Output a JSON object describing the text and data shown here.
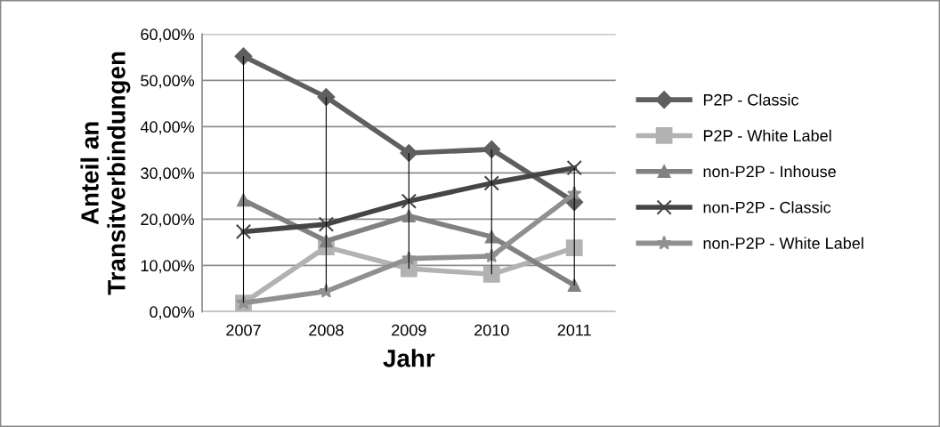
{
  "chart_data": {
    "type": "line",
    "xlabel": "Jahr",
    "ylabel": "Anteil an\nTransitverbindungen",
    "categories": [
      "2007",
      "2008",
      "2009",
      "2010",
      "2011"
    ],
    "series": [
      {
        "name": "P2P - Classic",
        "color": "#5f5f5f",
        "marker": "diamond",
        "values": [
          55.2,
          46.4,
          34.3,
          35.1,
          23.7
        ]
      },
      {
        "name": "P2P - White Label",
        "color": "#b2b2b2",
        "marker": "square",
        "values": [
          1.9,
          14.0,
          9.3,
          8.1,
          13.8
        ]
      },
      {
        "name": "non-P2P - Inhouse",
        "color": "#818181",
        "marker": "triangle",
        "values": [
          24.1,
          15.3,
          20.7,
          16.2,
          5.7
        ]
      },
      {
        "name": "non-P2P - Classic",
        "color": "#454545",
        "marker": "cross",
        "values": [
          17.3,
          18.9,
          23.9,
          27.8,
          31.1
        ]
      },
      {
        "name": "non-P2P - White Label",
        "color": "#909090",
        "marker": "star",
        "values": [
          1.9,
          4.4,
          11.5,
          12.0,
          25.5
        ]
      },
      {
        "type": "bar",
        "color": "#000000",
        "base": [
          1.9,
          4.4,
          9.3,
          8.1,
          5.7
        ],
        "values": [
          53.3,
          42.0,
          25.0,
          27.0,
          25.4
        ]
      }
    ],
    "ylim": [
      0,
      60
    ],
    "yticks": [
      {
        "value": 0,
        "label": "0,00%"
      },
      {
        "value": 10,
        "label": "10,00%"
      },
      {
        "value": 20,
        "label": "20,00%"
      },
      {
        "value": 30,
        "label": "30,00%"
      },
      {
        "value": 40,
        "label": "40,00%"
      },
      {
        "value": 50,
        "label": "50,00%"
      },
      {
        "value": 60,
        "label": "60,00%"
      }
    ],
    "grid": "y",
    "legend": "right",
    "line_style": "solid"
  }
}
